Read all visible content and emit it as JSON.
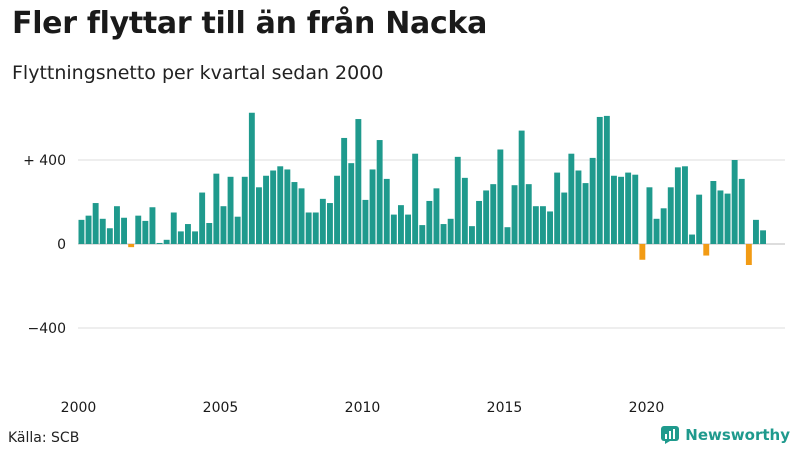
{
  "title": "Fler flyttar till än från Nacka",
  "subtitle": "Flyttningsnetto per kvartal sedan 2000",
  "source": "Källa: SCB",
  "brand": {
    "name": "Newsworthy",
    "icon": "newsworthy-logo-icon"
  },
  "colors": {
    "positive": "#1f9a8d",
    "negative": "#f29b14",
    "grid": "#dddddd",
    "brand": "#1f9a8d"
  },
  "chart_data": {
    "type": "bar",
    "title": "Fler flyttar till än från Nacka",
    "subtitle": "Flyttningsnetto per kvartal sedan 2000",
    "xlabel": "",
    "ylabel": "",
    "ylim": [
      -650,
      640
    ],
    "y_ticks": [
      {
        "value": 400,
        "label": "+ 400"
      },
      {
        "value": 0,
        "label": "0"
      },
      {
        "value": -400,
        "label": "−400"
      }
    ],
    "x_ticks": [
      {
        "label": "2000",
        "start_year": 2000
      },
      {
        "label": "2005",
        "start_year": 2005
      },
      {
        "label": "2010",
        "start_year": 2010
      },
      {
        "label": "2015",
        "start_year": 2015
      },
      {
        "label": "2020",
        "start_year": 2020
      }
    ],
    "start_year": 2000,
    "quarters_per_year": 4,
    "values": [
      115,
      135,
      195,
      120,
      75,
      180,
      125,
      -15,
      135,
      110,
      175,
      5,
      20,
      150,
      60,
      95,
      60,
      245,
      100,
      335,
      180,
      320,
      130,
      320,
      625,
      270,
      325,
      350,
      370,
      355,
      295,
      265,
      150,
      150,
      215,
      195,
      325,
      505,
      385,
      595,
      210,
      355,
      495,
      310,
      140,
      185,
      140,
      430,
      90,
      205,
      265,
      95,
      120,
      415,
      315,
      85,
      205,
      255,
      285,
      450,
      80,
      280,
      540,
      285,
      180,
      180,
      155,
      340,
      245,
      430,
      350,
      290,
      410,
      605,
      610,
      325,
      320,
      340,
      330,
      -75,
      270,
      120,
      170,
      270,
      365,
      370,
      45,
      235,
      -55,
      300,
      255,
      240,
      400,
      310,
      -100,
      115,
      65
    ]
  }
}
